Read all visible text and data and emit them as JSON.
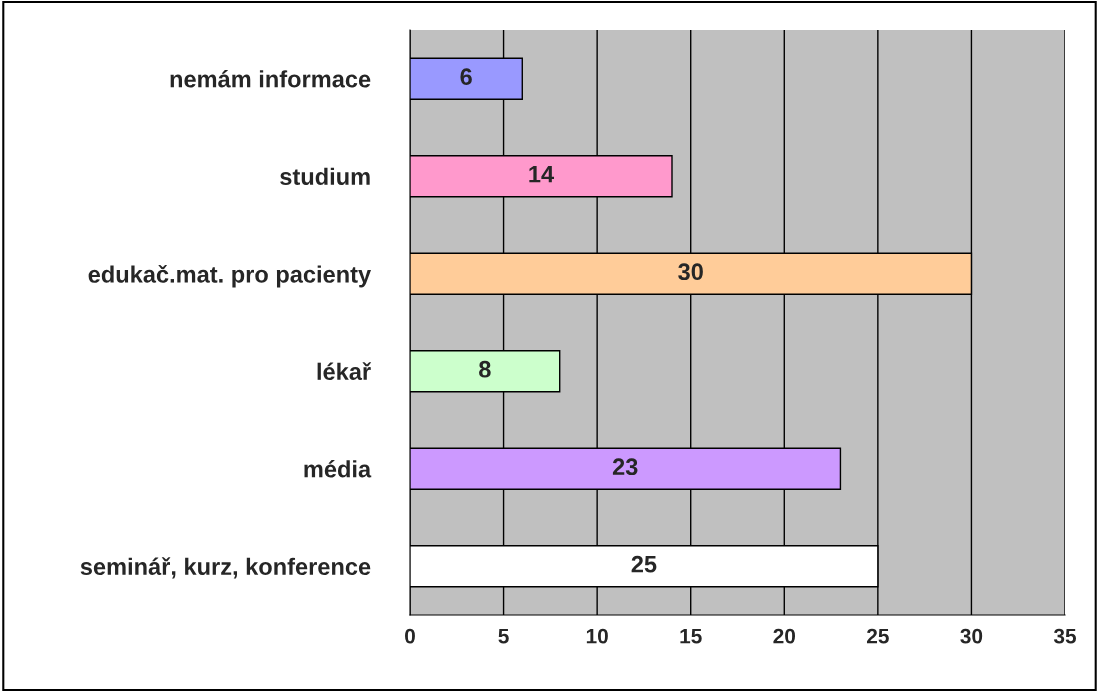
{
  "chart_data": {
    "type": "bar",
    "orientation": "horizontal",
    "categories": [
      "nemám informace",
      "studium",
      "edukač.mat. pro pacienty",
      "lékař",
      "média",
      "seminář, kurz, konference"
    ],
    "values": [
      6,
      14,
      30,
      8,
      23,
      25
    ],
    "colors": [
      "#9999ff",
      "#ff99cc",
      "#ffcc99",
      "#ccffcc",
      "#cc99ff",
      "#ffffff"
    ],
    "xlim": [
      0,
      35
    ],
    "xticks": [
      0,
      5,
      10,
      15,
      20,
      25,
      30,
      35
    ],
    "grid": "x",
    "data_labels": true,
    "legend": false
  }
}
